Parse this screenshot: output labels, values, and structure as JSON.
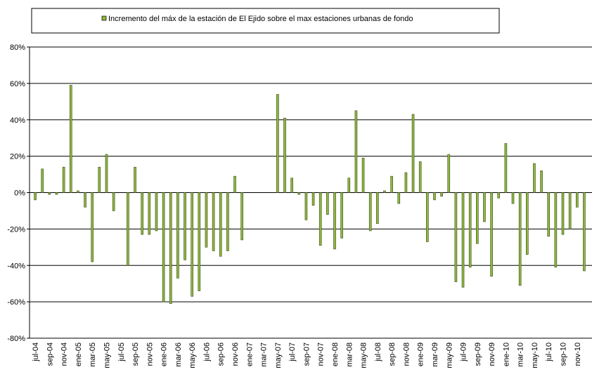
{
  "chart_data": {
    "type": "bar",
    "legend": "Incremento del máx de la estación de El Ejido sobre el max estaciones urbanas de fondo",
    "color": "#8fb83e",
    "categories": [
      "jul-04",
      null,
      "sep-04",
      null,
      "nov-04",
      null,
      "ene-05",
      null,
      "mar-05",
      null,
      "may-05",
      null,
      "jul-05",
      null,
      "sep-05",
      null,
      "nov-05",
      null,
      "ene-06",
      null,
      "mar-06",
      null,
      "may-06",
      null,
      "jul-06",
      null,
      "sep-06",
      null,
      "nov-06",
      null,
      "ene-07",
      null,
      "mar-07",
      null,
      "may-07",
      null,
      "jul-07",
      null,
      "sep-07",
      null,
      "nov-07",
      null,
      "ene-08",
      null,
      "mar-08",
      null,
      "may-08",
      null,
      "jul-08",
      null,
      "sep-08",
      null,
      "nov-08",
      null,
      "ene-09",
      null,
      "mar-09",
      null,
      "may-09",
      null,
      "jul-09",
      null,
      "sep-09",
      null,
      "nov-09",
      null,
      "ene-10",
      null,
      "mar-10",
      null,
      "may-10",
      null,
      "jul-10",
      null,
      "sep-10",
      null,
      "nov-10",
      null
    ],
    "values": [
      -4,
      13,
      -1,
      -1,
      14,
      59,
      1,
      -8,
      -38,
      14,
      21,
      -10,
      null,
      -40,
      14,
      -23,
      -23,
      -21,
      -60,
      -61,
      -47,
      -37,
      -57,
      -54,
      -30,
      -32,
      -35,
      -32,
      9,
      -26,
      null,
      null,
      null,
      null,
      54,
      41,
      8,
      -1,
      -15,
      -7,
      -29,
      -12,
      -31,
      -25,
      8,
      45,
      19,
      -21,
      -17,
      1,
      9,
      -6,
      11,
      43,
      17,
      -27,
      -4,
      -2,
      21,
      -49,
      -52,
      -41,
      -28,
      -16,
      -46,
      -3,
      27,
      -6,
      -51,
      -34,
      16,
      12,
      -24,
      -41,
      -23,
      -20,
      -8,
      -43
    ],
    "ylim": [
      -80,
      80
    ],
    "yticks": [
      {
        "value": -80,
        "label": "-80%"
      },
      {
        "value": -60,
        "label": "-60%"
      },
      {
        "value": -40,
        "label": "-40%"
      },
      {
        "value": -20,
        "label": "-20%"
      },
      {
        "value": 0,
        "label": "0%"
      },
      {
        "value": 20,
        "label": "20%"
      },
      {
        "value": 40,
        "label": "40%"
      },
      {
        "value": 60,
        "label": "60%"
      },
      {
        "value": 80,
        "label": "80%"
      }
    ],
    "grid": true
  }
}
